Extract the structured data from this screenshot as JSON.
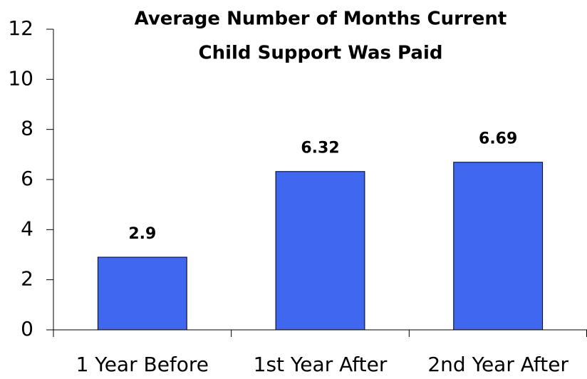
{
  "chart_data": {
    "type": "bar",
    "title": [
      "Average Number of Months Current",
      "Child Support Was Paid"
    ],
    "categories": [
      "1 Year Before",
      "1st Year After",
      "2nd Year After"
    ],
    "values": [
      2.9,
      6.32,
      6.69
    ],
    "color": "#3f67f0",
    "ylim": [
      0,
      12
    ],
    "yticks": [
      0,
      2,
      4,
      6,
      8,
      10,
      12
    ],
    "grid": false
  }
}
